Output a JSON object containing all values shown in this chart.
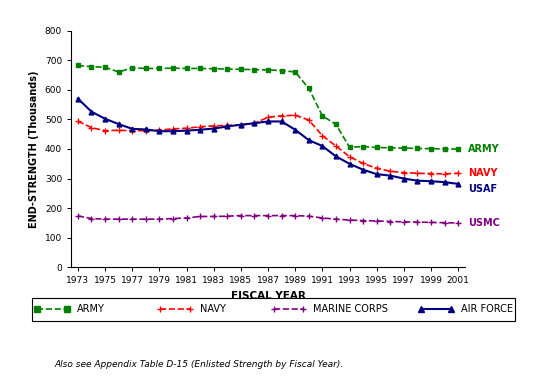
{
  "fiscal_years": [
    1973,
    1974,
    1975,
    1976,
    1977,
    1978,
    1979,
    1980,
    1981,
    1982,
    1983,
    1984,
    1985,
    1986,
    1987,
    1988,
    1989,
    1990,
    1991,
    1992,
    1993,
    1994,
    1995,
    1996,
    1997,
    1998,
    1999,
    2000,
    2001
  ],
  "army": [
    682,
    678,
    676,
    660,
    674,
    672,
    672,
    673,
    672,
    672,
    671,
    670,
    669,
    668,
    667,
    665,
    660,
    605,
    512,
    483,
    406,
    408,
    405,
    404,
    403,
    402,
    401,
    400,
    400
  ],
  "navy": [
    494,
    472,
    462,
    463,
    462,
    462,
    464,
    468,
    470,
    475,
    478,
    480,
    481,
    487,
    507,
    512,
    514,
    498,
    445,
    410,
    374,
    351,
    335,
    325,
    320,
    318,
    317,
    316,
    318
  ],
  "marine_corps": [
    174,
    165,
    163,
    163,
    163,
    163,
    163,
    165,
    167,
    172,
    172,
    173,
    175,
    175,
    175,
    175,
    175,
    173,
    167,
    163,
    160,
    158,
    157,
    155,
    154,
    153,
    152,
    151,
    150
  ],
  "air_force": [
    570,
    526,
    502,
    484,
    468,
    466,
    460,
    460,
    462,
    465,
    469,
    476,
    482,
    487,
    493,
    493,
    465,
    430,
    410,
    375,
    350,
    330,
    315,
    310,
    300,
    293,
    291,
    288,
    282
  ],
  "army_color": "#008000",
  "navy_color": "#FF0000",
  "marine_color": "#800080",
  "af_color": "#000080",
  "title": "",
  "xlabel": "FISCAL YEAR",
  "ylabel": "END-STRENGTH (Thousands)",
  "ylim": [
    0,
    800
  ],
  "yticks": [
    0,
    100,
    200,
    300,
    400,
    500,
    600,
    700,
    800
  ],
  "xtick_years": [
    1973,
    1975,
    1977,
    1979,
    1981,
    1983,
    1985,
    1987,
    1989,
    1991,
    1993,
    1995,
    1997,
    1999,
    2001
  ],
  "footnote": "Also see Appendix Table D-15 (Enlisted Strength by Fiscal Year).",
  "label_army": "ARMY",
  "label_navy": "NAVY",
  "label_usaf": "USAF",
  "label_usmc": "USMC"
}
